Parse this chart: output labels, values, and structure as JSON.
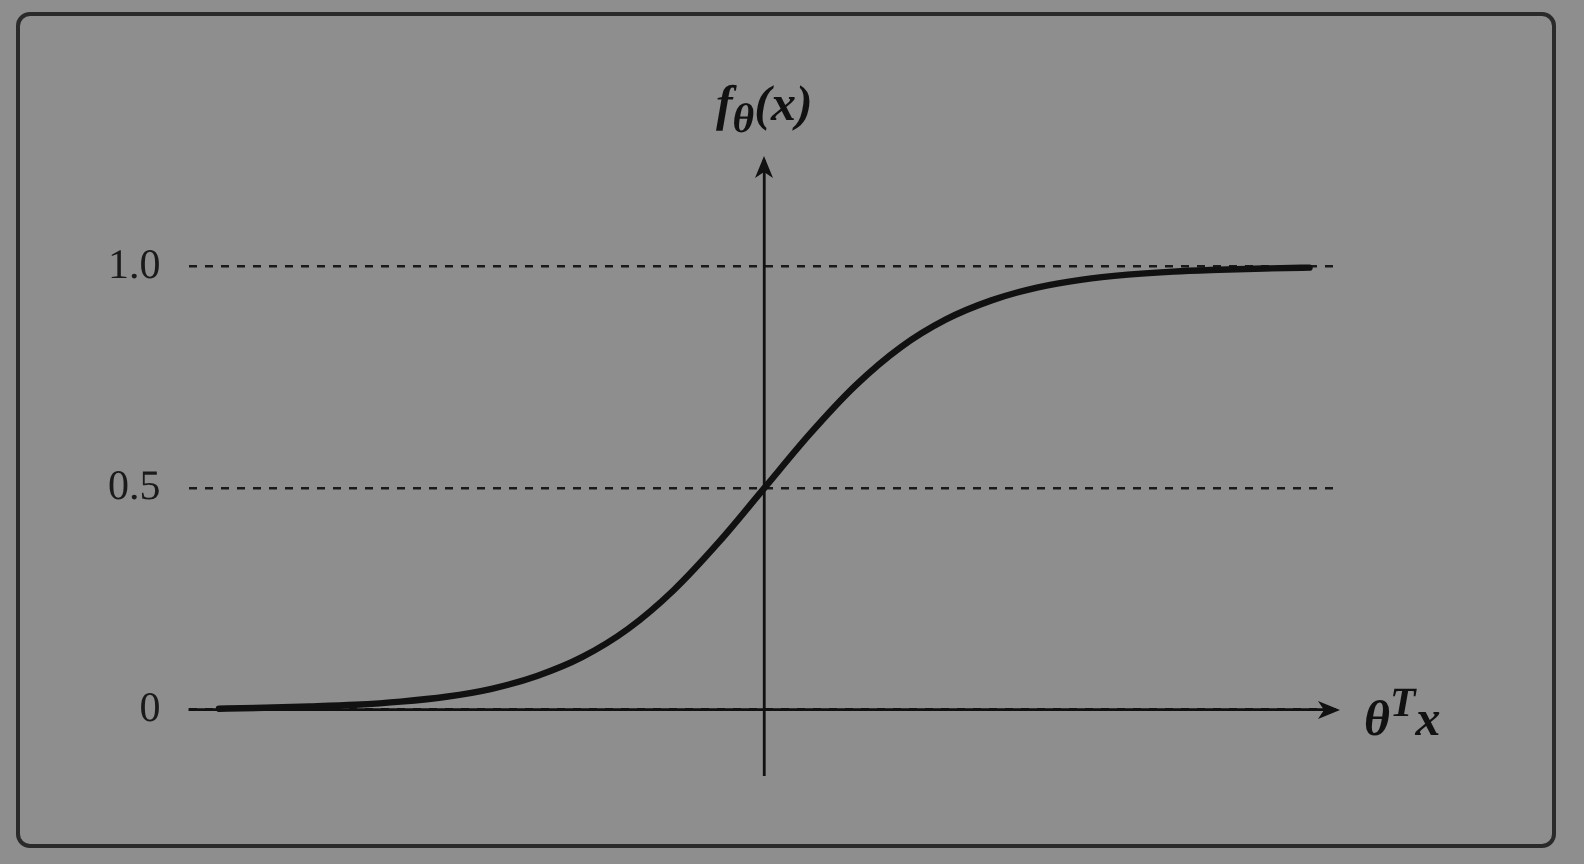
{
  "chart_data": {
    "type": "line",
    "xlabel": "θ$^{T}$x",
    "ylabel": "f$_{θ}$(x)",
    "categories": [
      null,
      null,
      null,
      null,
      null,
      null,
      null,
      null,
      null,
      null,
      null,
      null,
      null,
      null,
      null,
      null,
      null,
      null,
      null,
      null,
      null,
      null,
      null,
      null,
      null
    ],
    "values": [
      0.002,
      0.004,
      0.007,
      0.011,
      0.018,
      0.029,
      0.047,
      0.076,
      0.119,
      0.182,
      0.269,
      0.378,
      0.5,
      0.622,
      0.731,
      0.818,
      0.881,
      0.924,
      0.953,
      0.971,
      0.982,
      0.989,
      0.993,
      0.996,
      0.998
    ],
    "color": "#111111",
    "ylim": [
      -0.15,
      1.25
    ],
    "yticks": [
      0,
      0.5,
      {
        "value": 1,
        "label": "1.0"
      }
    ],
    "grid": "y",
    "legend": false,
    "tick_labels": "y",
    "marker": "none",
    "line_style": "solid"
  }
}
